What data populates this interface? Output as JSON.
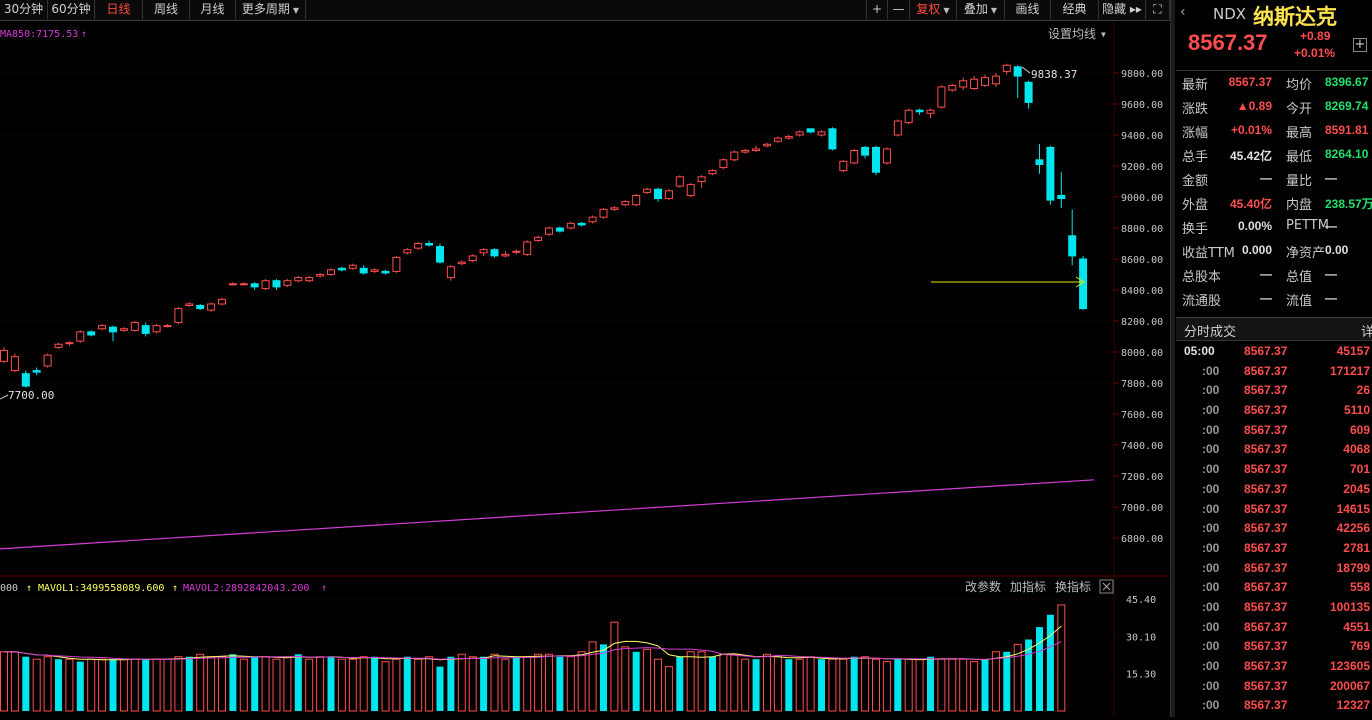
{
  "toolbar": {
    "tabs": [
      {
        "label": "30分钟",
        "active": false
      },
      {
        "label": "60分钟",
        "active": false
      },
      {
        "label": "日线",
        "active": true
      },
      {
        "label": "周线",
        "active": false
      },
      {
        "label": "月线",
        "active": false
      },
      {
        "label": "更多周期",
        "active": false,
        "dropdown": true
      }
    ],
    "right": [
      {
        "label": "+",
        "icon": "plus-icon"
      },
      {
        "label": "—",
        "icon": "minus-icon"
      },
      {
        "label": "复权",
        "active": true,
        "dropdown": true
      },
      {
        "label": "叠加",
        "dropdown": true
      },
      {
        "label": "画线"
      },
      {
        "label": "经典"
      },
      {
        "label": "隐藏 ▸▸"
      },
      {
        "label": "⛶",
        "icon": "fullscreen-icon"
      }
    ]
  },
  "main": {
    "ma_label": "MA850:7175.53",
    "settings_label": "设置均线",
    "high_marker": "9838.37",
    "low_marker": "7700.00",
    "colors": {
      "up": "#ff4d4d",
      "down": "#00e5ee",
      "ma": "#d63cd6",
      "arrow": "#e6e600",
      "grid": "#3a0000"
    }
  },
  "volume": {
    "vol_label": "000",
    "mavol1_label": "MAVOL1:3499558089.600",
    "mavol2_label": "MAVOL2:2892842043.200",
    "btn_params": "改参数",
    "btn_add": "加指标",
    "btn_swap": "换指标"
  },
  "chart_data": {
    "type": "candlestick",
    "price_axis_ticks": [
      "9800.00",
      "9600.00",
      "9400.00",
      "9200.00",
      "9000.00",
      "8800.00",
      "8600.00",
      "8400.00",
      "8200.00",
      "8000.00",
      "7800.00",
      "7600.00",
      "7400.00",
      "7200.00",
      "7000.00",
      "6800.00"
    ],
    "price_ylim": [
      6700,
      10000
    ],
    "volume_axis_ticks": [
      "45.40",
      "30.10",
      "15.30"
    ],
    "volume_ylim": [
      0,
      47
    ],
    "ma850_start": 6730,
    "ma850_end": 7175.53,
    "candles": [
      [
        7940,
        8010,
        7930,
        8030
      ],
      [
        7880,
        7970,
        7870,
        7990
      ],
      [
        7860,
        7780,
        7770,
        7880
      ],
      [
        7880,
        7870,
        7850,
        7900
      ],
      [
        7910,
        7980,
        7900,
        7990
      ],
      [
        8030,
        8050,
        8020,
        8060
      ],
      [
        8060,
        8060,
        8040,
        8070
      ],
      [
        8070,
        8130,
        8060,
        8140
      ],
      [
        8130,
        8110,
        8100,
        8140
      ],
      [
        8150,
        8170,
        8140,
        8180
      ],
      [
        8160,
        8130,
        8070,
        8170
      ],
      [
        8140,
        8150,
        8130,
        8160
      ],
      [
        8140,
        8190,
        8130,
        8200
      ],
      [
        8170,
        8120,
        8100,
        8190
      ],
      [
        8130,
        8170,
        8120,
        8180
      ],
      [
        8170,
        8170,
        8160,
        8180
      ],
      [
        8190,
        8280,
        8180,
        8290
      ],
      [
        8300,
        8310,
        8290,
        8320
      ],
      [
        8300,
        8280,
        8270,
        8310
      ],
      [
        8270,
        8310,
        8260,
        8320
      ],
      [
        8310,
        8340,
        8300,
        8350
      ],
      [
        8440,
        8440,
        8430,
        8450
      ],
      [
        8440,
        8440,
        8430,
        8450
      ],
      [
        8440,
        8420,
        8400,
        8450
      ],
      [
        8410,
        8460,
        8400,
        8470
      ],
      [
        8460,
        8420,
        8400,
        8470
      ],
      [
        8430,
        8460,
        8420,
        8470
      ],
      [
        8460,
        8480,
        8450,
        8490
      ],
      [
        8460,
        8480,
        8450,
        8490
      ],
      [
        8490,
        8500,
        8480,
        8510
      ],
      [
        8500,
        8530,
        8490,
        8540
      ],
      [
        8540,
        8530,
        8520,
        8550
      ],
      [
        8540,
        8560,
        8530,
        8570
      ],
      [
        8540,
        8510,
        8500,
        8560
      ],
      [
        8520,
        8530,
        8510,
        8540
      ],
      [
        8520,
        8510,
        8500,
        8530
      ],
      [
        8520,
        8610,
        8510,
        8620
      ],
      [
        8640,
        8660,
        8630,
        8670
      ],
      [
        8670,
        8700,
        8660,
        8710
      ],
      [
        8700,
        8690,
        8680,
        8720
      ],
      [
        8680,
        8580,
        8570,
        8700
      ],
      [
        8480,
        8550,
        8460,
        8560
      ],
      [
        8570,
        8580,
        8560,
        8590
      ],
      [
        8590,
        8620,
        8580,
        8630
      ],
      [
        8640,
        8660,
        8620,
        8670
      ],
      [
        8660,
        8620,
        8610,
        8670
      ],
      [
        8620,
        8630,
        8610,
        8650
      ],
      [
        8650,
        8650,
        8630,
        8660
      ],
      [
        8630,
        8710,
        8620,
        8720
      ],
      [
        8720,
        8740,
        8710,
        8750
      ],
      [
        8760,
        8800,
        8750,
        8810
      ],
      [
        8800,
        8780,
        8770,
        8810
      ],
      [
        8800,
        8830,
        8790,
        8840
      ],
      [
        8830,
        8820,
        8810,
        8840
      ],
      [
        8840,
        8870,
        8830,
        8880
      ],
      [
        8870,
        8920,
        8860,
        8930
      ],
      [
        8920,
        8930,
        8910,
        8940
      ],
      [
        8950,
        8970,
        8940,
        8980
      ],
      [
        8950,
        9010,
        8940,
        9020
      ],
      [
        9030,
        9050,
        9020,
        9060
      ],
      [
        9050,
        8990,
        8970,
        9060
      ],
      [
        8990,
        9040,
        8980,
        9050
      ],
      [
        9070,
        9130,
        9060,
        9140
      ],
      [
        9010,
        9080,
        9000,
        9090
      ],
      [
        9100,
        9130,
        9060,
        9140
      ],
      [
        9150,
        9170,
        9140,
        9180
      ],
      [
        9190,
        9240,
        9180,
        9250
      ],
      [
        9240,
        9290,
        9230,
        9300
      ],
      [
        9290,
        9300,
        9280,
        9310
      ],
      [
        9300,
        9310,
        9290,
        9330
      ],
      [
        9330,
        9340,
        9320,
        9350
      ],
      [
        9360,
        9380,
        9350,
        9390
      ],
      [
        9380,
        9390,
        9370,
        9400
      ],
      [
        9400,
        9420,
        9390,
        9430
      ],
      [
        9440,
        9420,
        9410,
        9440
      ],
      [
        9400,
        9420,
        9390,
        9430
      ],
      [
        9440,
        9310,
        9300,
        9450
      ],
      [
        9170,
        9230,
        9160,
        9240
      ],
      [
        9220,
        9300,
        9210,
        9310
      ],
      [
        9320,
        9270,
        9250,
        9330
      ],
      [
        9320,
        9160,
        9140,
        9330
      ],
      [
        9220,
        9310,
        9210,
        9320
      ],
      [
        9400,
        9490,
        9390,
        9500
      ],
      [
        9480,
        9560,
        9470,
        9570
      ],
      [
        9560,
        9550,
        9530,
        9570
      ],
      [
        9540,
        9560,
        9510,
        9570
      ],
      [
        9580,
        9710,
        9570,
        9720
      ],
      [
        9690,
        9720,
        9680,
        9730
      ],
      [
        9710,
        9750,
        9690,
        9770
      ],
      [
        9700,
        9760,
        9690,
        9780
      ],
      [
        9720,
        9770,
        9710,
        9790
      ],
      [
        9730,
        9780,
        9710,
        9800
      ],
      [
        9810,
        9850,
        9790,
        9860
      ],
      [
        9840,
        9780,
        9640,
        9850
      ],
      [
        9740,
        9610,
        9570,
        9750
      ],
      [
        9240,
        9210,
        9150,
        9340
      ],
      [
        9320,
        8980,
        8950,
        9330
      ],
      [
        9010,
        8990,
        8930,
        9160
      ],
      [
        8750,
        8620,
        8560,
        8920
      ],
      [
        8600,
        8280,
        8270,
        8620
      ]
    ],
    "volumes": [
      [
        24,
        1
      ],
      [
        24,
        1
      ],
      [
        22,
        0
      ],
      [
        21,
        1
      ],
      [
        22,
        1
      ],
      [
        21,
        0
      ],
      [
        21,
        1
      ],
      [
        20,
        0
      ],
      [
        21,
        1
      ],
      [
        21,
        1
      ],
      [
        21,
        0
      ],
      [
        21,
        1
      ],
      [
        21,
        1
      ],
      [
        21,
        0
      ],
      [
        21,
        1
      ],
      [
        21,
        1
      ],
      [
        22,
        1
      ],
      [
        22,
        0
      ],
      [
        23,
        1
      ],
      [
        22,
        1
      ],
      [
        22,
        1
      ],
      [
        23,
        0
      ],
      [
        21,
        1
      ],
      [
        22,
        0
      ],
      [
        22,
        1
      ],
      [
        21,
        1
      ],
      [
        22,
        1
      ],
      [
        23,
        0
      ],
      [
        21,
        1
      ],
      [
        22,
        1
      ],
      [
        22,
        0
      ],
      [
        21,
        1
      ],
      [
        21,
        1
      ],
      [
        22,
        1
      ],
      [
        22,
        0
      ],
      [
        20,
        1
      ],
      [
        21,
        1
      ],
      [
        22,
        0
      ],
      [
        21,
        1
      ],
      [
        22,
        1
      ],
      [
        18,
        0
      ],
      [
        22,
        0
      ],
      [
        23,
        1
      ],
      [
        22,
        1
      ],
      [
        22,
        0
      ],
      [
        23,
        1
      ],
      [
        21,
        1
      ],
      [
        22,
        0
      ],
      [
        22,
        1
      ],
      [
        23,
        1
      ],
      [
        23,
        1
      ],
      [
        22,
        0
      ],
      [
        22,
        1
      ],
      [
        24,
        1
      ],
      [
        28,
        1
      ],
      [
        27,
        0
      ],
      [
        36,
        1
      ],
      [
        26,
        1
      ],
      [
        24,
        0
      ],
      [
        25,
        1
      ],
      [
        21,
        1
      ],
      [
        18,
        1
      ],
      [
        22,
        0
      ],
      [
        24,
        1
      ],
      [
        24,
        1
      ],
      [
        22,
        0
      ],
      [
        23,
        1
      ],
      [
        23,
        1
      ],
      [
        21,
        1
      ],
      [
        21,
        0
      ],
      [
        23,
        1
      ],
      [
        22,
        1
      ],
      [
        21,
        0
      ],
      [
        21,
        1
      ],
      [
        22,
        1
      ],
      [
        21,
        0
      ],
      [
        21,
        1
      ],
      [
        21,
        1
      ],
      [
        22,
        0
      ],
      [
        22,
        1
      ],
      [
        21,
        1
      ],
      [
        20,
        1
      ],
      [
        21,
        0
      ],
      [
        21,
        1
      ],
      [
        21,
        1
      ],
      [
        22,
        0
      ],
      [
        21,
        1
      ],
      [
        21,
        1
      ],
      [
        21,
        1
      ],
      [
        20,
        1
      ],
      [
        21,
        0
      ],
      [
        24,
        1
      ],
      [
        24,
        0
      ],
      [
        27,
        1
      ],
      [
        29,
        0
      ],
      [
        34,
        0
      ],
      [
        39,
        0
      ],
      [
        43,
        1
      ]
    ]
  },
  "side": {
    "symbol": "NDX",
    "name": "纳斯达克",
    "price": "8567.37",
    "change": "+0.89",
    "change_pct": "+0.01%",
    "rows": [
      {
        "l1": "最新",
        "v1": "8567.37",
        "c1": "red",
        "l2": "均价",
        "v2": "8396.67",
        "c2": "grn"
      },
      {
        "l1": "涨跌",
        "v1": "▲0.89",
        "c1": "red",
        "l2": "今开",
        "v2": "8269.74",
        "c2": "grn"
      },
      {
        "l1": "涨幅",
        "v1": "+0.01%",
        "c1": "red",
        "l2": "最高",
        "v2": "8591.81",
        "c2": "red"
      },
      {
        "l1": "总手",
        "v1": "45.42亿",
        "c1": "wht",
        "l2": "最低",
        "v2": "8264.10",
        "c2": "grn"
      },
      {
        "l1": "金额",
        "v1": "—",
        "c1": "wht",
        "l2": "量比",
        "v2": "—",
        "c2": "wht"
      },
      {
        "l1": "外盘",
        "v1": "45.40亿",
        "c1": "red",
        "l2": "内盘",
        "v2": "238.57万",
        "c2": "grn"
      },
      {
        "l1": "换手",
        "v1": "0.00%",
        "c1": "wht",
        "l2": "PETTM",
        "v2": "—",
        "c2": "wht"
      },
      {
        "l1": "收益TTM",
        "v1": "0.000",
        "c1": "wht",
        "l2": "净资产",
        "v2": "0.00",
        "c2": "wht"
      },
      {
        "l1": "总股本",
        "v1": "—",
        "c1": "wht",
        "l2": "总值",
        "v2": "—",
        "c2": "wht"
      },
      {
        "l1": "流通股",
        "v1": "—",
        "c1": "wht",
        "l2": "流值",
        "v2": "—",
        "c2": "wht"
      }
    ],
    "trades_title": "分时成交",
    "trades_detail": "详",
    "trades": [
      {
        "t": "05:00",
        "p": "8567.37",
        "v": "45157"
      },
      {
        "t": ":00",
        "p": "8567.37",
        "v": "171217"
      },
      {
        "t": ":00",
        "p": "8567.37",
        "v": "26"
      },
      {
        "t": ":00",
        "p": "8567.37",
        "v": "5110"
      },
      {
        "t": ":00",
        "p": "8567.37",
        "v": "609"
      },
      {
        "t": ":00",
        "p": "8567.37",
        "v": "4068"
      },
      {
        "t": ":00",
        "p": "8567.37",
        "v": "701"
      },
      {
        "t": ":00",
        "p": "8567.37",
        "v": "2045"
      },
      {
        "t": ":00",
        "p": "8567.37",
        "v": "14615"
      },
      {
        "t": ":00",
        "p": "8567.37",
        "v": "42256"
      },
      {
        "t": ":00",
        "p": "8567.37",
        "v": "2781"
      },
      {
        "t": ":00",
        "p": "8567.37",
        "v": "18799"
      },
      {
        "t": ":00",
        "p": "8567.37",
        "v": "558"
      },
      {
        "t": ":00",
        "p": "8567.37",
        "v": "100135"
      },
      {
        "t": ":00",
        "p": "8567.37",
        "v": "4551"
      },
      {
        "t": ":00",
        "p": "8567.37",
        "v": "769"
      },
      {
        "t": ":00",
        "p": "8567.37",
        "v": "123605"
      },
      {
        "t": ":00",
        "p": "8567.37",
        "v": "200067"
      },
      {
        "t": ":00",
        "p": "8567.37",
        "v": "12327"
      }
    ]
  }
}
